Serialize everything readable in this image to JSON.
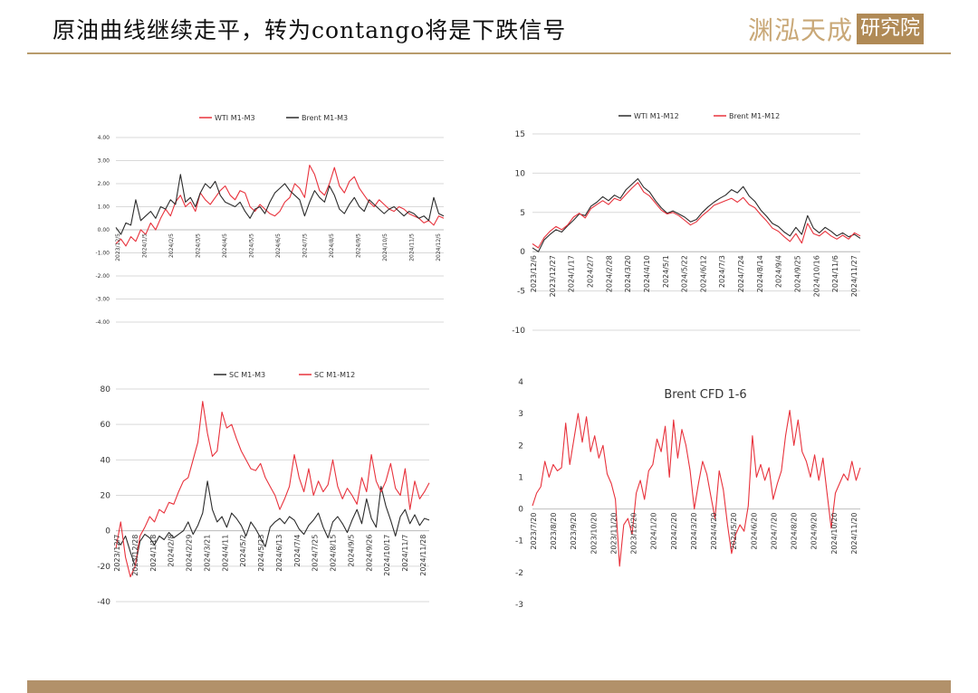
{
  "header": {
    "title": "原油曲线继续走平，转为contango将是下跌信号",
    "logo_text": "渊泓天成",
    "logo_box_text": "研究院"
  },
  "colors": {
    "red": "#e8323c",
    "black": "#2b2b2b",
    "gold": "#b89b6c",
    "grid": "#d9d9d9"
  },
  "chart_data": [
    {
      "type": "line",
      "title": "",
      "legend": "top",
      "grid": true,
      "ylim": [
        -4,
        4
      ],
      "yticks": [
        4,
        3,
        2,
        1,
        0,
        -1,
        -2,
        -3,
        -4
      ],
      "ytick_labels": [
        "4.00",
        "3.00",
        "2.00",
        "1.00",
        "0.00",
        "-1.00",
        "-2.00",
        "-3.00",
        "-4.00"
      ],
      "xtick_labels": [
        "2023/12/5",
        "2024/1/5",
        "2024/2/5",
        "2024/3/5",
        "2024/4/5",
        "2024/5/5",
        "2024/6/5",
        "2024/7/5",
        "2024/8/5",
        "2024/9/5",
        "2024/10/5",
        "2024/11/5",
        "2024/12/5"
      ],
      "series": [
        {
          "name": "WTI M1-M3",
          "color": "#e8323c",
          "values": [
            -0.6,
            -0.4,
            -0.7,
            -0.3,
            -0.5,
            0.0,
            -0.2,
            0.3,
            0.0,
            0.5,
            0.9,
            0.6,
            1.2,
            1.5,
            1.0,
            1.2,
            0.8,
            1.6,
            1.3,
            1.1,
            1.4,
            1.7,
            1.9,
            1.5,
            1.3,
            1.7,
            1.6,
            1.0,
            0.8,
            1.1,
            0.9,
            0.7,
            0.6,
            0.8,
            1.2,
            1.4,
            2.0,
            1.8,
            1.4,
            2.8,
            2.4,
            1.7,
            1.5,
            2.0,
            2.7,
            1.9,
            1.6,
            2.1,
            2.3,
            1.8,
            1.5,
            1.2,
            1.0,
            1.3,
            1.1,
            0.9,
            0.8,
            1.0,
            0.9,
            0.7,
            0.6,
            0.5,
            0.3,
            0.4,
            0.2,
            0.6,
            0.5
          ]
        },
        {
          "name": "Brent M1-M3",
          "color": "#2b2b2b",
          "values": [
            0.1,
            -0.2,
            0.3,
            0.2,
            1.3,
            0.4,
            0.6,
            0.8,
            0.5,
            1.0,
            0.9,
            1.3,
            1.1,
            2.4,
            1.2,
            1.4,
            1.0,
            1.6,
            2.0,
            1.8,
            2.1,
            1.5,
            1.2,
            1.1,
            1.0,
            1.2,
            0.8,
            0.5,
            0.9,
            1.0,
            0.7,
            1.2,
            1.6,
            1.8,
            2.0,
            1.7,
            1.5,
            1.3,
            0.6,
            1.2,
            1.7,
            1.4,
            1.2,
            1.9,
            1.5,
            0.9,
            0.7,
            1.1,
            1.4,
            1.0,
            0.8,
            1.3,
            1.1,
            0.9,
            0.7,
            0.9,
            1.0,
            0.8,
            0.6,
            0.8,
            0.7,
            0.5,
            0.6,
            0.4,
            1.4,
            0.7,
            0.6
          ]
        }
      ]
    },
    {
      "type": "line",
      "title": "",
      "legend": "top",
      "grid": true,
      "ylim": [
        -10,
        15
      ],
      "yticks": [
        15,
        10,
        5,
        0,
        -5,
        -10
      ],
      "xtick_labels": [
        "2023/12/6",
        "2023/12/27",
        "2024/1/17",
        "2024/2/7",
        "2024/2/28",
        "2024/3/20",
        "2024/4/10",
        "2024/5/1",
        "2024/5/22",
        "2024/6/12",
        "2024/7/3",
        "2024/7/24",
        "2024/8/14",
        "2024/9/4",
        "2024/9/25",
        "2024/10/16",
        "2024/11/6",
        "2024/11/27"
      ],
      "series": [
        {
          "name": "WTI M1-M12",
          "color": "#2b2b2b",
          "values": [
            0.5,
            0.0,
            1.5,
            2.2,
            2.8,
            2.5,
            3.3,
            4.0,
            4.8,
            4.6,
            5.8,
            6.3,
            7.0,
            6.5,
            7.2,
            6.8,
            7.9,
            8.6,
            9.3,
            8.2,
            7.6,
            6.5,
            5.6,
            4.9,
            5.2,
            4.8,
            4.4,
            3.8,
            4.1,
            5.0,
            5.7,
            6.3,
            6.8,
            7.2,
            7.9,
            7.5,
            8.3,
            7.1,
            6.4,
            5.3,
            4.5,
            3.6,
            3.2,
            2.5,
            2.0,
            3.1,
            2.2,
            4.6,
            3.0,
            2.4,
            3.1,
            2.6,
            2.0,
            2.4,
            1.9,
            2.2,
            1.7
          ]
        },
        {
          "name": "Brent M1-M12",
          "color": "#e8323c",
          "values": [
            1.0,
            0.5,
            1.8,
            2.6,
            3.2,
            2.8,
            3.4,
            4.4,
            4.9,
            4.3,
            5.5,
            6.0,
            6.5,
            6.0,
            6.8,
            6.5,
            7.3,
            8.1,
            8.8,
            7.6,
            7.1,
            6.2,
            5.3,
            4.8,
            5.0,
            4.6,
            4.0,
            3.4,
            3.8,
            4.6,
            5.2,
            5.9,
            6.2,
            6.5,
            6.8,
            6.3,
            6.9,
            6.0,
            5.6,
            4.7,
            3.9,
            3.0,
            2.6,
            1.9,
            1.3,
            2.3,
            1.1,
            3.6,
            2.3,
            2.0,
            2.6,
            2.0,
            1.6,
            2.1,
            1.6,
            2.4,
            2.0
          ]
        }
      ]
    },
    {
      "type": "line",
      "title": "",
      "legend": "top",
      "grid": true,
      "ylim": [
        -40,
        80
      ],
      "yticks": [
        80,
        60,
        40,
        20,
        0,
        -20,
        -40
      ],
      "xtick_labels": [
        "2023/12/7",
        "2023/12/28",
        "2024/1/18",
        "2024/2/8",
        "2024/2/29",
        "2024/3/21",
        "2024/4/11",
        "2024/5/2",
        "2024/5/23",
        "2024/6/13",
        "2024/7/4",
        "2024/7/25",
        "2024/8/15",
        "2024/9/5",
        "2024/9/26",
        "2024/10/17",
        "2024/11/7",
        "2024/11/28"
      ],
      "series": [
        {
          "name": "SC M1-M3",
          "color": "#2b2b2b",
          "values": [
            -5,
            -8,
            -3,
            -12,
            -20,
            -6,
            -2,
            -4,
            -8,
            -3,
            -5,
            -1,
            -4,
            -2,
            0,
            5,
            -2,
            3,
            10,
            28,
            12,
            5,
            8,
            2,
            10,
            7,
            3,
            -3,
            5,
            1,
            -4,
            -9,
            2,
            5,
            7,
            4,
            8,
            6,
            1,
            -2,
            3,
            6,
            10,
            2,
            -4,
            5,
            8,
            4,
            -1,
            6,
            12,
            4,
            18,
            7,
            2,
            25,
            14,
            6,
            -3,
            8,
            12,
            4,
            9,
            3,
            7,
            6
          ]
        },
        {
          "name": "SC M1-M12",
          "color": "#e8323c",
          "values": [
            -10,
            5,
            -15,
            -26,
            -20,
            -3,
            2,
            8,
            5,
            12,
            10,
            16,
            15,
            22,
            28,
            30,
            40,
            50,
            73,
            55,
            42,
            45,
            67,
            58,
            60,
            52,
            45,
            40,
            35,
            34,
            38,
            30,
            25,
            20,
            12,
            18,
            25,
            43,
            30,
            22,
            35,
            20,
            28,
            22,
            26,
            40,
            25,
            18,
            24,
            20,
            15,
            30,
            22,
            43,
            28,
            22,
            28,
            38,
            24,
            20,
            35,
            12,
            28,
            18,
            22,
            27
          ]
        }
      ]
    },
    {
      "type": "line",
      "title": "Brent CFD 1-6",
      "legend": "none",
      "grid": false,
      "ylim": [
        -3,
        4
      ],
      "yticks": [
        4,
        3,
        2,
        1,
        0,
        -1,
        -2,
        -3
      ],
      "xtick_labels": [
        "2023/7/20",
        "2023/8/20",
        "2023/9/20",
        "2023/10/20",
        "2023/11/20",
        "2023/12/20",
        "2024/1/20",
        "2024/2/20",
        "2024/3/20",
        "2024/4/20",
        "2024/5/20",
        "2024/6/20",
        "2024/7/20",
        "2024/8/20",
        "2024/9/20",
        "2024/10/20",
        "2024/11/20"
      ],
      "series": [
        {
          "name": "Brent CFD 1-6",
          "color": "#e8323c",
          "values": [
            0.1,
            0.5,
            0.7,
            1.5,
            1.0,
            1.4,
            1.2,
            1.3,
            2.7,
            1.4,
            2.2,
            3.0,
            2.1,
            2.9,
            1.8,
            2.3,
            1.6,
            2.0,
            1.1,
            0.8,
            0.3,
            -1.8,
            -0.5,
            -0.3,
            -0.8,
            0.5,
            0.9,
            0.3,
            1.2,
            1.4,
            2.2,
            1.8,
            2.6,
            1.0,
            2.8,
            1.6,
            2.5,
            2.0,
            1.2,
            0.0,
            0.8,
            1.5,
            1.1,
            0.4,
            -0.3,
            1.2,
            0.6,
            -0.5,
            -1.4,
            -0.8,
            -0.5,
            -0.7,
            0.1,
            2.3,
            1.0,
            1.4,
            0.9,
            1.3,
            0.3,
            0.8,
            1.2,
            2.3,
            3.1,
            2.0,
            2.8,
            1.8,
            1.5,
            1.0,
            1.7,
            0.9,
            1.6,
            0.5,
            -0.6,
            0.5,
            0.8,
            1.1,
            0.9,
            1.5,
            0.9,
            1.3
          ]
        }
      ]
    }
  ]
}
